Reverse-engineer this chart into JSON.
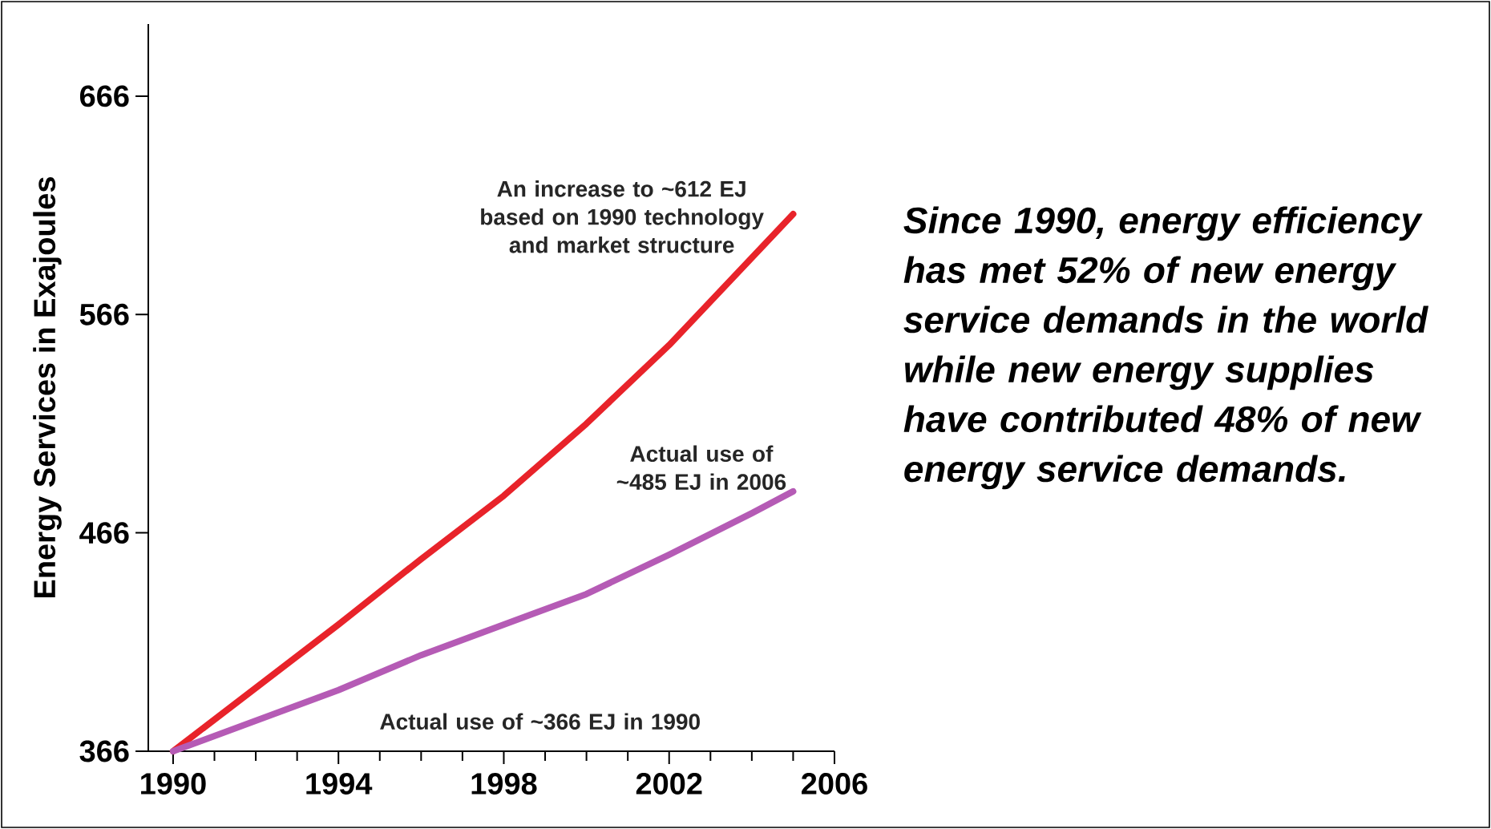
{
  "chart_data": {
    "type": "line",
    "ylabel": "Energy Services in Exajoules",
    "x": [
      1990,
      1992,
      1994,
      1996,
      1998,
      2000,
      2002,
      2004,
      2005
    ],
    "series": [
      {
        "color": "#e8232a",
        "values": [
          366,
          395,
          424,
          454,
          483,
          516,
          552,
          592,
          612
        ]
      },
      {
        "color": "#b55bb5",
        "values": [
          366,
          380,
          394,
          410,
          424,
          438,
          456,
          475,
          485
        ]
      }
    ],
    "xlim": [
      1989.4,
      2006
    ],
    "xticks": [
      1990,
      1994,
      1998,
      2002,
      2006
    ],
    "ylim": [
      366,
      699
    ],
    "yticks": [
      366,
      466,
      566,
      666
    ],
    "grid": false,
    "marker": "none",
    "line_style": "solid",
    "annotations": [
      "An increase to ~612 EJ based on 1990 technology and market structure",
      "Actual use of ~485 EJ in 2006",
      "Actual use of ~366 EJ in 1990",
      "Since 1990, energy efficiency has met 52% of new energy service demands in the world while new energy supplies have contributed 48% of new energy service demands."
    ]
  }
}
